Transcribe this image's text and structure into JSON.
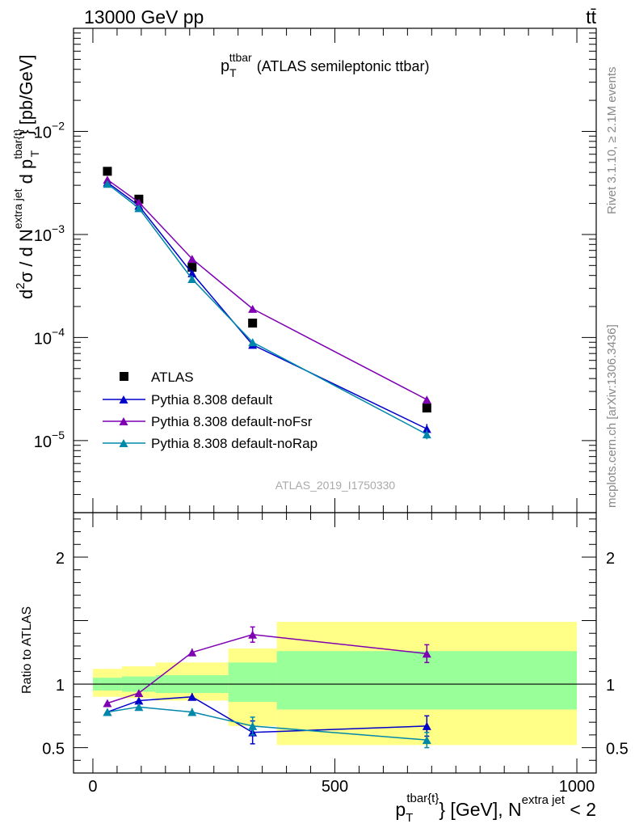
{
  "header": {
    "left": "13000 GeV pp",
    "right_base": "t",
    "right_bar": "t",
    "right_bar_mark": "̄"
  },
  "side_labels": {
    "rivet": "Rivet 3.1.10, ≥ 2.1M events",
    "mcplots": "mcplots.cern.ch [arXiv:1306.3436]"
  },
  "title": {
    "main": "p",
    "sub": "T",
    "sup": "ttbar",
    "rest": "(ATLAS semileptonic ttbar)"
  },
  "analysis_label": "ATLAS_2019_I1750330",
  "ylabel_upper": {
    "p1": "d",
    "p1_sup": "2",
    "p2": "σ  /  d N",
    "p2_sup": "extra jet",
    "p3": " d p",
    "p3_sup": "tbar{t}",
    "p3_sub": "T",
    "p4": "} [pb/GeV]"
  },
  "ylabel_lower": "Ratio to ATLAS",
  "xlabel": {
    "p1": "p",
    "p1_sup": "tbar{t}",
    "p1_sub": "T",
    "p2": "} [GeV], N",
    "p2_sup": "extra jet",
    "p3": " < 2"
  },
  "colors": {
    "data": "#000000",
    "default": "#0000cc",
    "noFsr": "#7f00b2",
    "noRap": "#0088aa",
    "band_green": "#99ff99",
    "band_yellow": "#ffff88"
  },
  "chart_data": [
    {
      "type": "scatter",
      "panel": "main",
      "yscale": "log",
      "xlim": [
        -40,
        1040
      ],
      "ylim": [
        2e-06,
        0.1
      ],
      "y_tick_labels": [
        {
          "value": 1e-05,
          "base": "10",
          "exp": "−5"
        },
        {
          "value": 0.0001,
          "base": "10",
          "exp": "−4"
        },
        {
          "value": 0.001,
          "base": "10",
          "exp": "−3"
        },
        {
          "value": 0.01,
          "base": "10",
          "exp": "−2"
        }
      ],
      "x_bins": [
        [
          0,
          60
        ],
        [
          60,
          130
        ],
        [
          130,
          280
        ],
        [
          280,
          380
        ],
        [
          380,
          1000
        ]
      ],
      "x": [
        30,
        95,
        205,
        330,
        690
      ],
      "series": [
        {
          "name": "ATLAS",
          "marker": "square",
          "color_key": "data",
          "values": [
            0.0041,
            0.0022,
            0.00048,
            0.000138,
            2.07e-05
          ]
        },
        {
          "name": "Pythia 8.308 default",
          "marker": "triangle",
          "color_key": "default",
          "values": [
            0.0032,
            0.0019,
            0.00042,
            8.5e-05,
            1.3e-05
          ],
          "errors": [
            5e-05,
            3e-05,
            1e-05,
            6e-06,
            1.5e-06
          ]
        },
        {
          "name": "Pythia 8.308 default-noFsr",
          "marker": "triangle",
          "color_key": "noFsr",
          "values": [
            0.0034,
            0.00205,
            0.00058,
            0.00019,
            2.5e-05
          ],
          "errors": [
            5e-05,
            3e-05,
            1e-05,
            6e-06,
            1.5e-06
          ]
        },
        {
          "name": "Pythia 8.308 default-noRap",
          "marker": "triangle",
          "color_key": "noRap",
          "values": [
            0.0031,
            0.0018,
            0.00037,
            9e-05,
            1.15e-05
          ],
          "errors": [
            5e-05,
            3e-05,
            1e-05,
            7e-06,
            1.2e-06
          ]
        }
      ],
      "legend_position": "lower-left"
    },
    {
      "type": "scatter",
      "panel": "ratio",
      "ylabel": "Ratio to ATLAS",
      "xlim": [
        -40,
        1040
      ],
      "ylim": [
        0.3,
        2.35
      ],
      "x_ticks": [
        0,
        500,
        1000
      ],
      "y_ticks": [
        0.5,
        1,
        2
      ],
      "y_tick_labels": [
        "0.5",
        "1",
        "2"
      ],
      "reference_line": 1,
      "uncertainty_bands": [
        {
          "x": [
            0,
            60
          ],
          "green": [
            0.95,
            1.05
          ],
          "yellow": [
            0.9,
            1.12
          ]
        },
        {
          "x": [
            60,
            130
          ],
          "green": [
            0.94,
            1.06
          ],
          "yellow": [
            0.89,
            1.14
          ]
        },
        {
          "x": [
            130,
            280
          ],
          "green": [
            0.93,
            1.07
          ],
          "yellow": [
            0.87,
            1.17
          ]
        },
        {
          "x": [
            280,
            380
          ],
          "green": [
            0.86,
            1.17
          ],
          "yellow": [
            0.67,
            1.28
          ]
        },
        {
          "x": [
            380,
            1000
          ],
          "green": [
            0.8,
            1.26
          ],
          "yellow": [
            0.52,
            1.49
          ]
        }
      ],
      "x": [
        30,
        95,
        205,
        330,
        690
      ],
      "series": [
        {
          "name": "Pythia 8.308 default",
          "color_key": "default",
          "values": [
            0.78,
            0.87,
            0.9,
            0.62,
            0.67
          ],
          "errors": [
            0.015,
            0.02,
            0.03,
            0.09,
            0.08
          ]
        },
        {
          "name": "Pythia 8.308 default-noFsr",
          "color_key": "noFsr",
          "values": [
            0.85,
            0.93,
            1.25,
            1.39,
            1.24
          ],
          "errors": [
            0.015,
            0.02,
            0.03,
            0.06,
            0.07
          ]
        },
        {
          "name": "Pythia 8.308 default-noRap",
          "color_key": "noRap",
          "values": [
            0.78,
            0.82,
            0.78,
            0.67,
            0.56
          ],
          "errors": [
            0.015,
            0.02,
            0.03,
            0.07,
            0.06
          ]
        }
      ]
    }
  ]
}
